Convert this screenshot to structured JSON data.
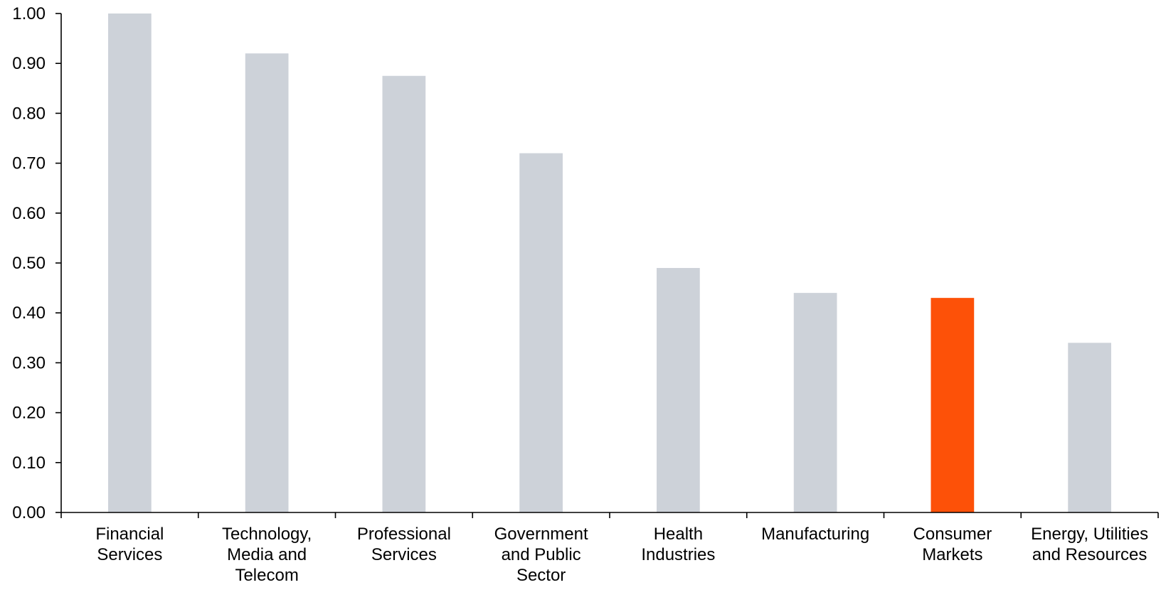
{
  "chart_data": {
    "type": "bar",
    "categories": [
      [
        "Financial",
        "Services"
      ],
      [
        "Technology,",
        "Media and",
        "Telecom"
      ],
      [
        "Professional",
        "Services"
      ],
      [
        "Government",
        "and Public",
        "Sector"
      ],
      [
        "Health",
        "Industries"
      ],
      [
        "Manufacturing"
      ],
      [
        "Consumer",
        "Markets"
      ],
      [
        "Energy, Utilities",
        "and Resources"
      ]
    ],
    "values": [
      1.0,
      0.92,
      0.875,
      0.72,
      0.49,
      0.44,
      0.43,
      0.34
    ],
    "highlight_index": 6,
    "colors": {
      "default": "#cdd2d9",
      "highlight": "#fd5108"
    },
    "yticks": [
      "0.00",
      "0.10",
      "0.20",
      "0.30",
      "0.40",
      "0.50",
      "0.60",
      "0.70",
      "0.80",
      "0.90",
      "1.00"
    ],
    "ylim": [
      0,
      1
    ],
    "title": "",
    "xlabel": "",
    "ylabel": "",
    "grid": false,
    "legend": "none"
  }
}
